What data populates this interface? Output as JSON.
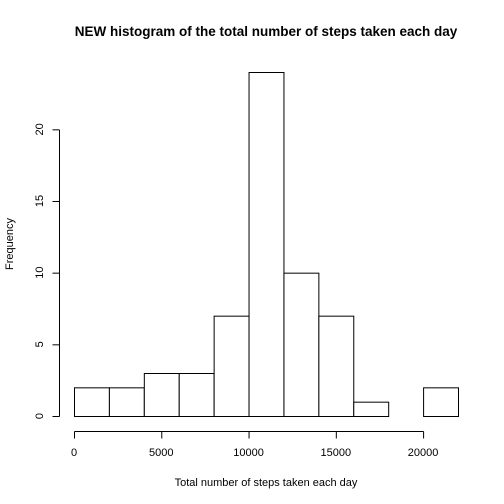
{
  "chart_data": {
    "type": "bar",
    "title": "NEW histogram of the total number of steps taken each day",
    "xlabel": "Total number of steps taken each day",
    "ylabel": "Frequency",
    "bins": [
      {
        "from": 0,
        "to": 2000,
        "count": 2
      },
      {
        "from": 2000,
        "to": 4000,
        "count": 2
      },
      {
        "from": 4000,
        "to": 6000,
        "count": 3
      },
      {
        "from": 6000,
        "to": 8000,
        "count": 3
      },
      {
        "from": 8000,
        "to": 10000,
        "count": 7
      },
      {
        "from": 10000,
        "to": 12000,
        "count": 24
      },
      {
        "from": 12000,
        "to": 14000,
        "count": 10
      },
      {
        "from": 14000,
        "to": 16000,
        "count": 7
      },
      {
        "from": 16000,
        "to": 18000,
        "count": 1
      },
      {
        "from": 18000,
        "to": 20000,
        "count": 0
      },
      {
        "from": 20000,
        "to": 22000,
        "count": 2
      }
    ],
    "xlim": [
      0,
      22000
    ],
    "ylim": [
      0,
      24
    ],
    "x_ticks": [
      "0",
      "5000",
      "10000",
      "15000",
      "20000"
    ],
    "y_ticks": [
      "0",
      "5",
      "10",
      "15",
      "20"
    ],
    "grid": false,
    "legend": "none"
  }
}
